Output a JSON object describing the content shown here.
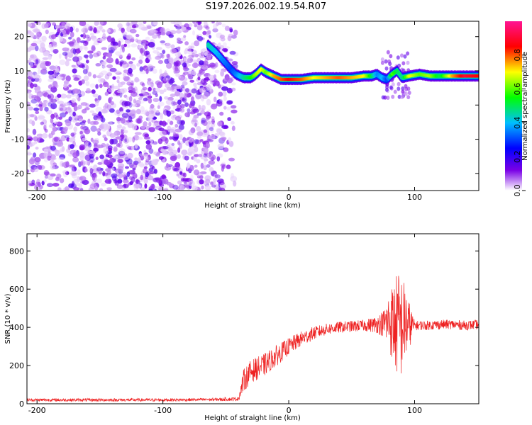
{
  "title": "S197.2026.002.19.54.R07",
  "chart_data": [
    {
      "type": "heatmap",
      "title": "S197.2026.002.19.54.R07",
      "xlabel": "Height of straight line (km)",
      "ylabel": "Frequency (Hz)",
      "xlim": [
        -208,
        151
      ],
      "ylim": [
        -25,
        24.5
      ],
      "xticks": [
        -200,
        -100,
        0,
        100
      ],
      "yticks": [
        -20,
        -10,
        0,
        10,
        20
      ],
      "colorbar": {
        "label": "Normalized spectral amplitude",
        "range": [
          0,
          1
        ],
        "ticks": [
          "0.0",
          "0.2",
          "0.4",
          "0.6",
          "0.8"
        ],
        "colors": [
          "#ffffff",
          "#7a00e6",
          "#0000ff",
          "#00bfff",
          "#00ff00",
          "#ffff00",
          "#ff0000",
          "#ff1493"
        ]
      },
      "noise_region": {
        "x": [
          -208,
          -50
        ],
        "description": "scattered purple noise"
      },
      "ridge": {
        "x": [
          -64,
          -58,
          -52,
          -46,
          -42,
          -36,
          -30,
          -26,
          -22,
          -18,
          -12,
          -6,
          0,
          10,
          20,
          30,
          40,
          50,
          60,
          66,
          70,
          74,
          78,
          82,
          86,
          90,
          96,
          104,
          112,
          120,
          130,
          140,
          151
        ],
        "freq": [
          17.5,
          15.5,
          13,
          10.5,
          9,
          8,
          8,
          9,
          10.5,
          9.5,
          8.5,
          7.5,
          7.5,
          7.5,
          8,
          8,
          8,
          8,
          8.5,
          8.5,
          9,
          8,
          7.5,
          9,
          10,
          8,
          8.5,
          9,
          8.5,
          8.5,
          8.5,
          8.5,
          8.5
        ],
        "amplitude": [
          0.45,
          0.4,
          0.35,
          0.3,
          0.35,
          0.45,
          0.55,
          0.65,
          0.7,
          0.6,
          0.75,
          0.8,
          0.85,
          0.8,
          0.7,
          0.75,
          0.8,
          0.75,
          0.7,
          0.5,
          0.35,
          0.4,
          0.3,
          0.6,
          0.5,
          0.45,
          0.7,
          0.6,
          0.65,
          0.5,
          0.75,
          0.9,
          0.85
        ]
      }
    },
    {
      "type": "line",
      "xlabel": "Height of straight line (km)",
      "ylabel": "SNR (10 * v/v)",
      "xlim": [
        -208,
        151
      ],
      "ylim": [
        0,
        890
      ],
      "xticks": [
        -200,
        -100,
        0,
        100
      ],
      "yticks": [
        0,
        200,
        400,
        600,
        800
      ],
      "series": [
        {
          "name": "SNR",
          "color": "#ee2222",
          "envelope_x": [
            -208,
            -100,
            -60,
            -40,
            -36,
            -30,
            -20,
            -10,
            0,
            10,
            20,
            30,
            40,
            50,
            60,
            70,
            75,
            80,
            85,
            88,
            92,
            96,
            100,
            110,
            120,
            130,
            140,
            151
          ],
          "envelope_y": [
            20,
            20,
            22,
            25,
            120,
            170,
            200,
            250,
            300,
            340,
            370,
            390,
            400,
            405,
            410,
            415,
            420,
            430,
            420,
            400,
            420,
            410,
            410,
            410,
            415,
            415,
            410,
            415
          ],
          "noise_amplitude": [
            8,
            8,
            8,
            10,
            60,
            60,
            60,
            55,
            45,
            40,
            35,
            30,
            30,
            30,
            30,
            45,
            70,
            160,
            260,
            300,
            220,
            120,
            25,
            25,
            25,
            25,
            25,
            25
          ]
        }
      ]
    }
  ]
}
